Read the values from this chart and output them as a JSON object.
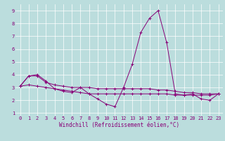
{
  "title": "",
  "xlabel": "Windchill (Refroidissement éolien,°C)",
  "ylabel": "",
  "xlim": [
    -0.5,
    23.5
  ],
  "ylim": [
    0.8,
    9.5
  ],
  "xticks": [
    0,
    1,
    2,
    3,
    4,
    5,
    6,
    7,
    8,
    9,
    10,
    11,
    12,
    13,
    14,
    15,
    16,
    17,
    18,
    19,
    20,
    21,
    22,
    23
  ],
  "yticks": [
    1,
    2,
    3,
    4,
    5,
    6,
    7,
    8,
    9
  ],
  "bg_color": "#bbdddd",
  "line_color": "#880077",
  "series": [
    [
      3.1,
      3.9,
      4.0,
      3.5,
      2.9,
      2.7,
      2.6,
      3.0,
      2.5,
      2.1,
      1.7,
      1.5,
      3.0,
      4.8,
      7.3,
      8.4,
      9.0,
      6.5,
      2.5,
      2.4,
      2.5,
      2.1,
      2.0,
      2.5
    ],
    [
      3.1,
      3.9,
      3.9,
      3.4,
      3.2,
      3.1,
      3.0,
      3.0,
      3.0,
      2.9,
      2.9,
      2.9,
      2.9,
      2.9,
      2.9,
      2.9,
      2.8,
      2.8,
      2.7,
      2.6,
      2.6,
      2.5,
      2.5,
      2.5
    ],
    [
      3.1,
      3.2,
      3.1,
      3.0,
      2.9,
      2.8,
      2.7,
      2.6,
      2.5,
      2.5,
      2.5,
      2.5,
      2.5,
      2.5,
      2.5,
      2.5,
      2.5,
      2.5,
      2.4,
      2.4,
      2.4,
      2.4,
      2.4,
      2.5
    ]
  ],
  "grid_color": "#ffffff",
  "tick_fontsize": 5,
  "xlabel_fontsize": 5.5
}
